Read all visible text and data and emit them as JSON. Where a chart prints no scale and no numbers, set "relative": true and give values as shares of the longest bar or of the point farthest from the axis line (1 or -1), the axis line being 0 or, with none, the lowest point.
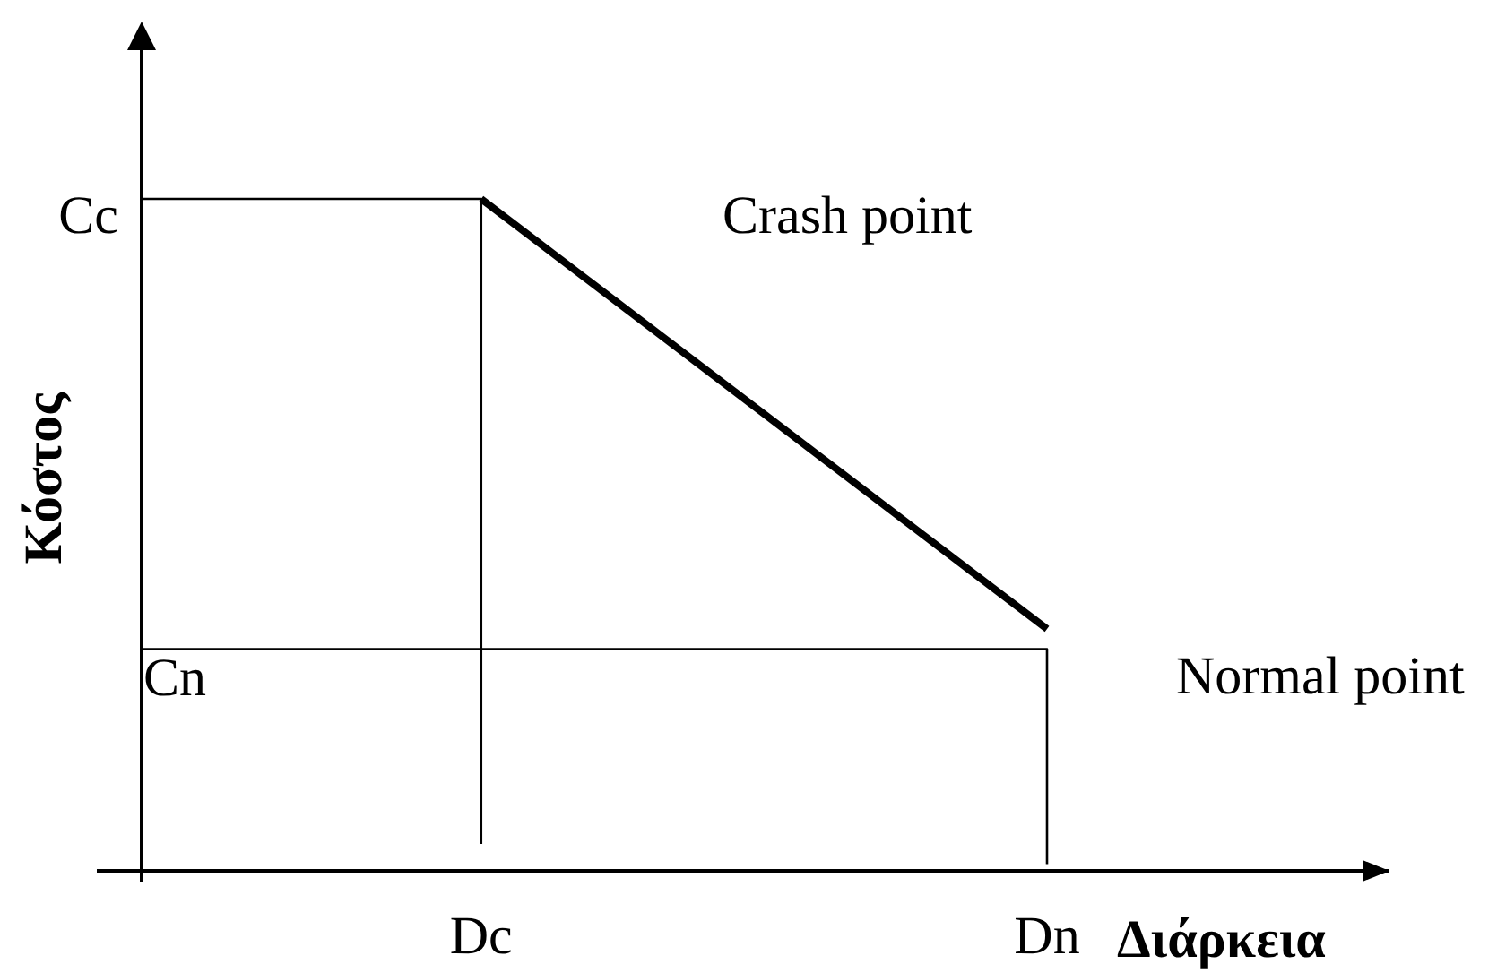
{
  "chart_data": {
    "type": "line",
    "relative": true,
    "xlabel": "Διάρκεια",
    "ylabel": "Κόστος",
    "categories": [
      null,
      null,
      null,
      "Dc",
      null,
      null,
      null,
      null,
      "Dn"
    ],
    "series": [
      {
        "type": "line",
        "color": "#000000",
        "x": [
          "Dc",
          "Dn"
        ],
        "values": [
          1,
          0.36
        ]
      },
      {
        "type": "step",
        "color": "#000000",
        "values": [
          1,
          1,
          1,
          0.04,
          null,
          null,
          null,
          null,
          null
        ]
      },
      {
        "type": "step",
        "color": "#000000",
        "values": [
          0.33,
          0.33,
          0.33,
          0.33,
          0.33,
          0.33,
          0.33,
          0.33,
          0.01
        ]
      }
    ],
    "annotations": [
      "Cc",
      "Crash point",
      "Cn",
      "Normal point"
    ]
  }
}
